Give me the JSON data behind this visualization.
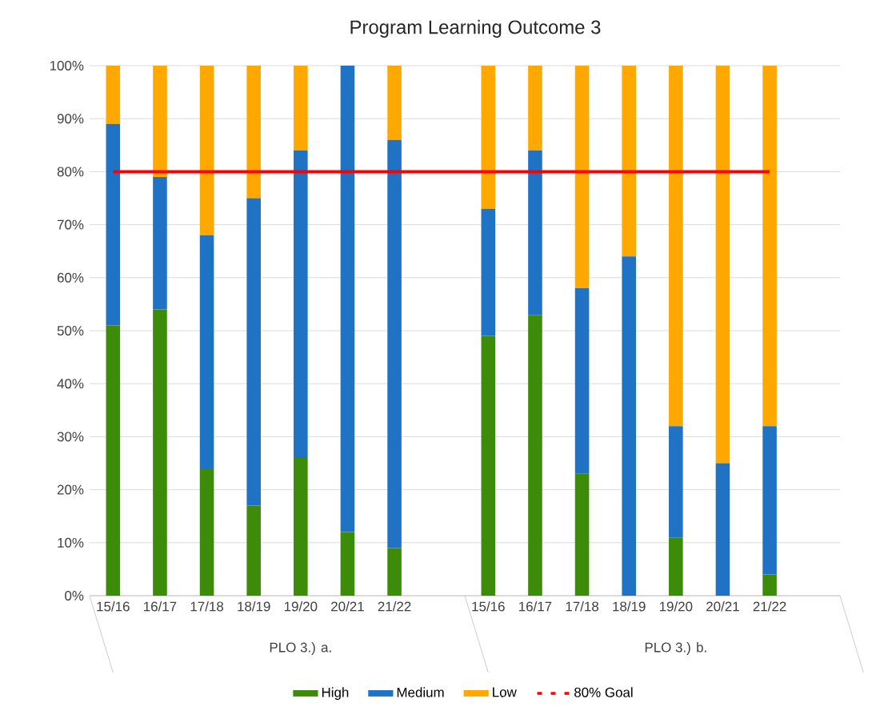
{
  "chart_data": {
    "type": "bar",
    "stacked": true,
    "title": "Program Learning Outcome 3",
    "categories": [
      "15/16",
      "16/17",
      "17/18",
      "18/19",
      "19/20",
      "20/21",
      "21/22",
      null,
      "15/16",
      "16/17",
      "17/18",
      "18/19",
      "19/20",
      "20/21",
      "21/22",
      null
    ],
    "series": [
      {
        "name": "High",
        "color": "#3c8c0a",
        "values": [
          51,
          54,
          24,
          17,
          26,
          12,
          9,
          null,
          49,
          53,
          23,
          0,
          11,
          0,
          4,
          null
        ]
      },
      {
        "name": "Medium",
        "color": "#1f72c4",
        "values": [
          38,
          25,
          44,
          58,
          58,
          88,
          77,
          null,
          24,
          31,
          35,
          64,
          21,
          25,
          28,
          null
        ]
      },
      {
        "name": "Low",
        "color": "#ffa800",
        "values": [
          11,
          21,
          32,
          25,
          16,
          0,
          14,
          null,
          27,
          16,
          42,
          36,
          68,
          75,
          68,
          null
        ]
      },
      {
        "name": "80% Goal",
        "color": "#ff0000",
        "type": "line",
        "values": [
          80,
          80,
          80,
          80,
          80,
          80,
          80,
          80,
          80,
          80,
          80,
          80,
          80,
          80,
          80,
          null
        ]
      }
    ],
    "annotations": [
      "PLO 3.) a.",
      "PLO 3.) b."
    ],
    "ylim": [
      0,
      100
    ],
    "yticks": [
      {
        "value": 0,
        "label": "0%"
      },
      {
        "value": 10,
        "label": "10%"
      },
      {
        "value": 20,
        "label": "20%"
      },
      {
        "value": 30,
        "label": "30%"
      },
      {
        "value": 40,
        "label": "40%"
      },
      {
        "value": 50,
        "label": "50%"
      },
      {
        "value": 60,
        "label": "60%"
      },
      {
        "value": 70,
        "label": "70%"
      },
      {
        "value": 80,
        "label": "80%"
      },
      {
        "value": 90,
        "label": "90%"
      },
      {
        "value": 100,
        "label": "100%"
      }
    ],
    "grid": "y",
    "legend": "bottom",
    "marker": "none",
    "line_style": "solid"
  }
}
